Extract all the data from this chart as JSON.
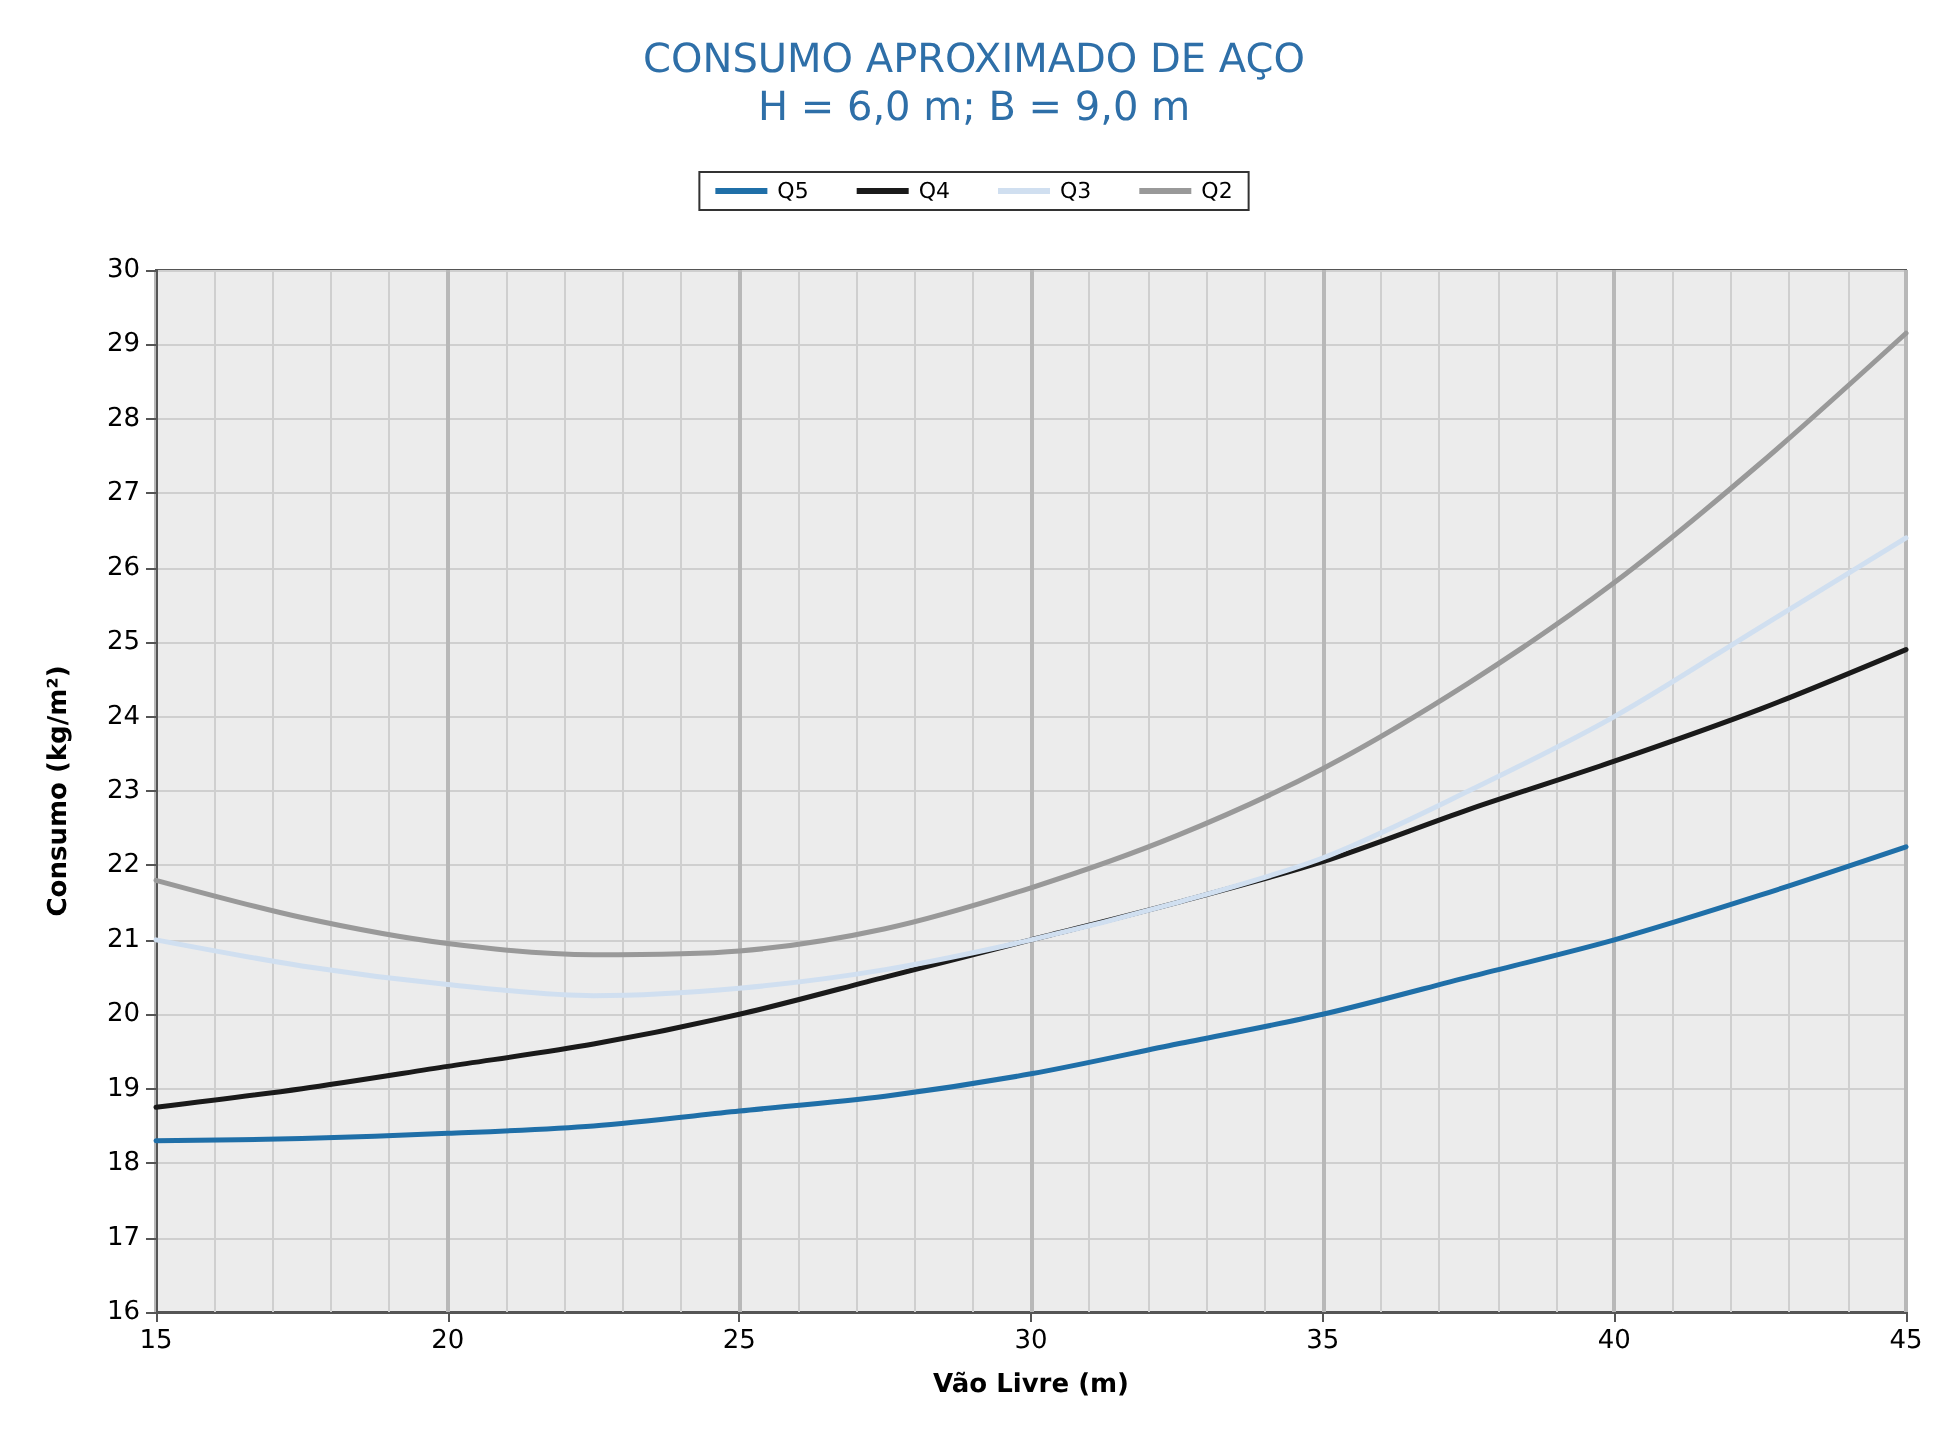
{
  "chart_data": {
    "type": "line",
    "title": "CONSUMO APROXIMADO DE AÇO",
    "subtitle": "H = 6,0 m; B = 9,0 m",
    "xlabel": "Vão Livre (m)",
    "ylabel": "Consumo (kg/m²)",
    "x": [
      15,
      17.5,
      20,
      22.5,
      25,
      27.5,
      30,
      32.5,
      35,
      37.5,
      40,
      42.5,
      45
    ],
    "series": [
      {
        "name": "Q5",
        "color": "#1f6fa8",
        "values": [
          18.3,
          18.33,
          18.4,
          18.5,
          18.7,
          18.9,
          19.2,
          19.6,
          20.0,
          20.5,
          21.0,
          21.6,
          22.25
        ]
      },
      {
        "name": "Q4",
        "color": "#1a1a1a",
        "values": [
          18.75,
          19.0,
          19.3,
          19.6,
          20.0,
          20.5,
          21.0,
          21.5,
          22.05,
          22.75,
          23.4,
          24.1,
          24.9
        ]
      },
      {
        "name": "Q3",
        "color": "#d0dff0",
        "values": [
          21.0,
          20.65,
          20.4,
          20.25,
          20.35,
          20.6,
          21.0,
          21.5,
          22.1,
          23.0,
          24.0,
          25.2,
          26.4
        ]
      },
      {
        "name": "Q2",
        "color": "#999999",
        "values": [
          21.8,
          21.3,
          20.95,
          20.8,
          20.85,
          21.15,
          21.7,
          22.4,
          23.3,
          24.45,
          25.8,
          27.4,
          29.15
        ]
      }
    ],
    "xlim": [
      15,
      45
    ],
    "xticks": [
      15,
      20,
      25,
      30,
      35,
      40,
      45
    ],
    "ylim": [
      16,
      30
    ],
    "yticks": [
      16,
      17,
      18,
      19,
      20,
      21,
      22,
      23,
      24,
      25,
      26,
      27,
      28,
      29,
      30
    ],
    "grid": true,
    "legend": "top",
    "marker": "none",
    "line_style": "solid"
  }
}
